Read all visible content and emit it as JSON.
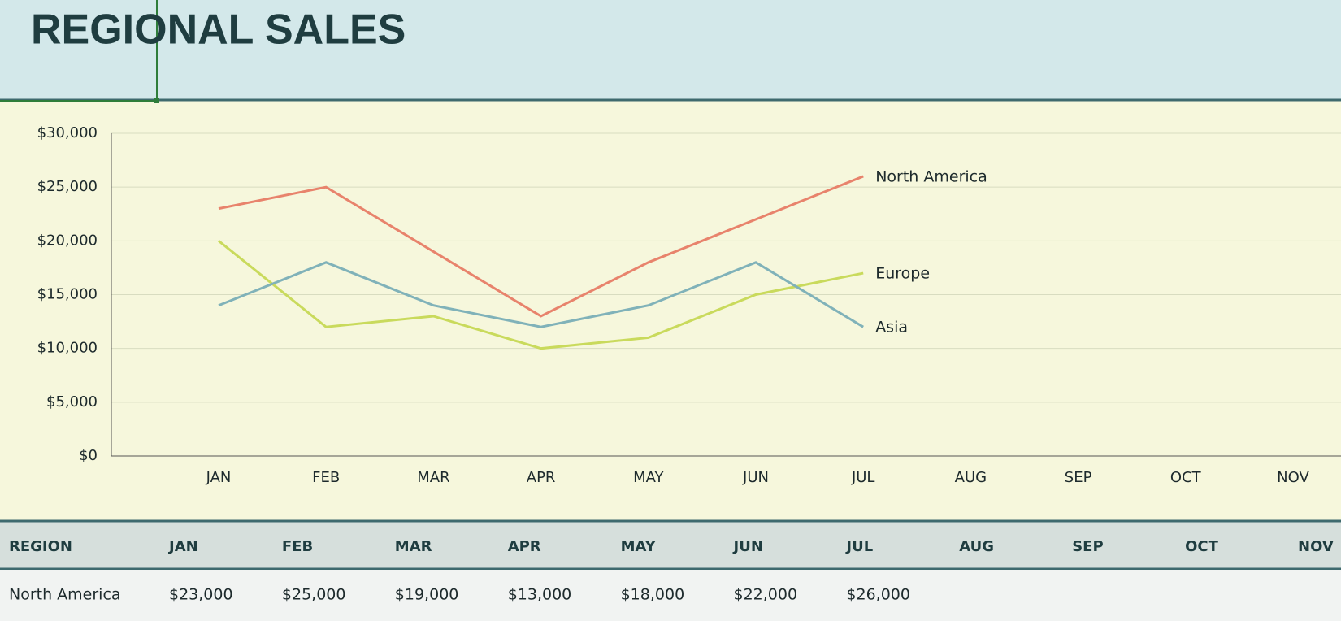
{
  "header": {
    "title": "REGIONAL SALES"
  },
  "chart_data": {
    "type": "line",
    "categories": [
      "JAN",
      "FEB",
      "MAR",
      "APR",
      "MAY",
      "JUN",
      "JUL",
      "AUG",
      "SEP",
      "OCT",
      "NOV"
    ],
    "series": [
      {
        "name": "North America",
        "color": "#e8836c",
        "values": [
          23000,
          25000,
          19000,
          13000,
          18000,
          22000,
          26000,
          null,
          null,
          null,
          null
        ]
      },
      {
        "name": "Europe",
        "color": "#c9da5c",
        "values": [
          20000,
          12000,
          13000,
          10000,
          11000,
          15000,
          17000,
          null,
          null,
          null,
          null
        ]
      },
      {
        "name": "Asia",
        "color": "#80b2b9",
        "values": [
          14000,
          18000,
          14000,
          12000,
          14000,
          18000,
          12000,
          null,
          null,
          null,
          null
        ]
      }
    ],
    "ylim": [
      0,
      30000
    ],
    "yticks": [
      {
        "value": 0,
        "label": "$0"
      },
      {
        "value": 5000,
        "label": "$5,000"
      },
      {
        "value": 10000,
        "label": "$10,000"
      },
      {
        "value": 15000,
        "label": "$15,000"
      },
      {
        "value": 20000,
        "label": "$20,000"
      },
      {
        "value": 25000,
        "label": "$25,000"
      },
      {
        "value": 30000,
        "label": "$30,000"
      }
    ],
    "grid": true
  },
  "table": {
    "header": [
      "REGION",
      "JAN",
      "FEB",
      "MAR",
      "APR",
      "MAY",
      "JUN",
      "JUL",
      "AUG",
      "SEP",
      "OCT",
      "NOV"
    ],
    "rows": [
      [
        "North America",
        "$23,000",
        "$25,000",
        "$19,000",
        "$13,000",
        "$18,000",
        "$22,000",
        "$26,000"
      ]
    ]
  }
}
